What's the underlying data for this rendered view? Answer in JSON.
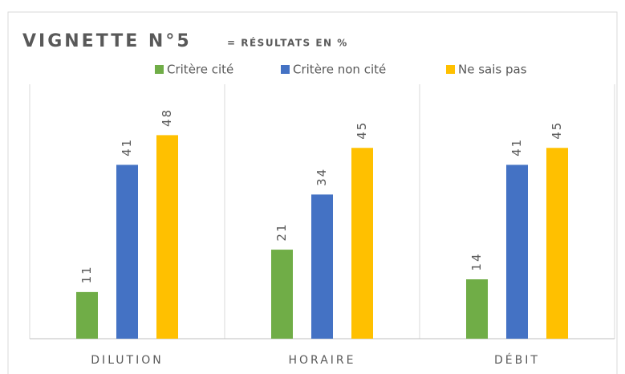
{
  "chart_data": {
    "type": "bar",
    "title": "VIGNETTE N°5",
    "subtitle": "= RÉSULTATS EN %",
    "categories": [
      "DILUTION",
      "HORAIRE",
      "DÉBIT"
    ],
    "series": [
      {
        "name": "Critère cité",
        "color": "#70ad47",
        "values": [
          11,
          21,
          14
        ]
      },
      {
        "name": "Critère non cité",
        "color": "#4472c4",
        "values": [
          41,
          34,
          41
        ]
      },
      {
        "name": "Ne sais pas",
        "color": "#ffc000",
        "values": [
          48,
          45,
          45
        ]
      }
    ],
    "ylim": [
      0,
      60
    ],
    "legend": "top"
  }
}
